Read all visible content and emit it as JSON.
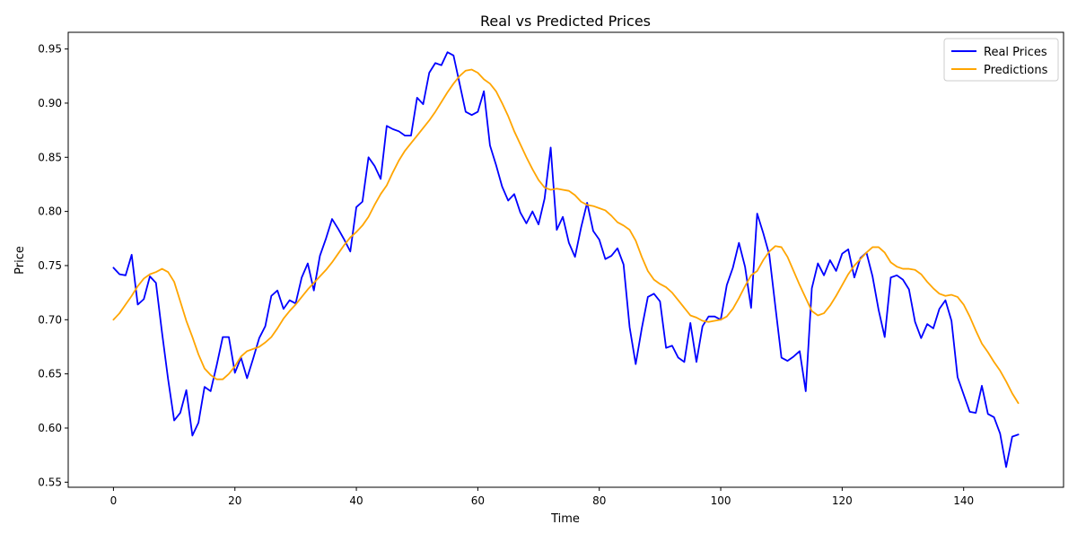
{
  "chart_data": {
    "type": "line",
    "title": "Real vs Predicted Prices",
    "xlabel": "Time",
    "ylabel": "Price",
    "xlim": [
      -7.45,
      156.45
    ],
    "ylim": [
      0.5453,
      0.9654
    ],
    "xticks": [
      0,
      20,
      40,
      60,
      80,
      100,
      120,
      140
    ],
    "yticks": [
      0.55,
      0.6,
      0.65,
      0.7,
      0.75,
      0.8,
      0.85,
      0.9,
      0.95
    ],
    "ytick_labels": [
      "0.55",
      "0.60",
      "0.65",
      "0.70",
      "0.75",
      "0.80",
      "0.85",
      "0.90",
      "0.95"
    ],
    "grid": false,
    "legend_position": "top-right",
    "series": [
      {
        "name": "Real Prices",
        "color": "#0000ff",
        "values": [
          0.748,
          0.742,
          0.741,
          0.76,
          0.714,
          0.719,
          0.74,
          0.734,
          0.688,
          0.645,
          0.607,
          0.614,
          0.635,
          0.593,
          0.605,
          0.638,
          0.634,
          0.658,
          0.684,
          0.684,
          0.651,
          0.665,
          0.646,
          0.664,
          0.683,
          0.694,
          0.722,
          0.727,
          0.71,
          0.718,
          0.715,
          0.739,
          0.752,
          0.727,
          0.759,
          0.775,
          0.793,
          0.784,
          0.774,
          0.763,
          0.804,
          0.809,
          0.85,
          0.842,
          0.83,
          0.879,
          0.876,
          0.874,
          0.87,
          0.87,
          0.905,
          0.899,
          0.928,
          0.937,
          0.935,
          0.947,
          0.944,
          0.918,
          0.892,
          0.889,
          0.892,
          0.911,
          0.861,
          0.843,
          0.823,
          0.81,
          0.816,
          0.799,
          0.789,
          0.8,
          0.788,
          0.812,
          0.859,
          0.783,
          0.795,
          0.771,
          0.758,
          0.785,
          0.808,
          0.782,
          0.774,
          0.756,
          0.759,
          0.766,
          0.751,
          0.693,
          0.659,
          0.692,
          0.721,
          0.724,
          0.717,
          0.674,
          0.676,
          0.665,
          0.661,
          0.697,
          0.661,
          0.694,
          0.703,
          0.703,
          0.7,
          0.732,
          0.748,
          0.771,
          0.749,
          0.711,
          0.798,
          0.78,
          0.76,
          0.712,
          0.665,
          0.662,
          0.666,
          0.671,
          0.634,
          0.729,
          0.752,
          0.741,
          0.755,
          0.745,
          0.761,
          0.765,
          0.739,
          0.757,
          0.762,
          0.74,
          0.709,
          0.684,
          0.739,
          0.741,
          0.737,
          0.728,
          0.698,
          0.683,
          0.696,
          0.692,
          0.71,
          0.718,
          0.699,
          0.647,
          0.631,
          0.615,
          0.614,
          0.639,
          0.613,
          0.61,
          0.595,
          0.564,
          0.592,
          0.594
        ]
      },
      {
        "name": "Predictions",
        "color": "#ffa500",
        "values": [
          0.7,
          0.706,
          0.714,
          0.722,
          0.731,
          0.738,
          0.742,
          0.744,
          0.747,
          0.744,
          0.735,
          0.717,
          0.699,
          0.684,
          0.668,
          0.655,
          0.649,
          0.645,
          0.645,
          0.65,
          0.657,
          0.666,
          0.671,
          0.673,
          0.675,
          0.679,
          0.684,
          0.692,
          0.701,
          0.708,
          0.714,
          0.721,
          0.728,
          0.734,
          0.74,
          0.746,
          0.753,
          0.761,
          0.769,
          0.776,
          0.781,
          0.787,
          0.795,
          0.806,
          0.816,
          0.824,
          0.836,
          0.847,
          0.856,
          0.863,
          0.87,
          0.877,
          0.884,
          0.892,
          0.901,
          0.91,
          0.918,
          0.925,
          0.93,
          0.931,
          0.928,
          0.922,
          0.918,
          0.911,
          0.9,
          0.888,
          0.874,
          0.862,
          0.85,
          0.839,
          0.829,
          0.822,
          0.82,
          0.821,
          0.82,
          0.819,
          0.815,
          0.809,
          0.806,
          0.805,
          0.803,
          0.801,
          0.796,
          0.79,
          0.787,
          0.783,
          0.773,
          0.758,
          0.745,
          0.737,
          0.733,
          0.73,
          0.725,
          0.718,
          0.711,
          0.704,
          0.702,
          0.699,
          0.698,
          0.699,
          0.7,
          0.703,
          0.71,
          0.72,
          0.731,
          0.741,
          0.745,
          0.755,
          0.763,
          0.768,
          0.767,
          0.758,
          0.745,
          0.732,
          0.72,
          0.708,
          0.704,
          0.706,
          0.713,
          0.722,
          0.732,
          0.742,
          0.75,
          0.756,
          0.762,
          0.767,
          0.767,
          0.762,
          0.753,
          0.749,
          0.747,
          0.747,
          0.746,
          0.742,
          0.735,
          0.729,
          0.724,
          0.722,
          0.723,
          0.721,
          0.714,
          0.703,
          0.69,
          0.678,
          0.67,
          0.661,
          0.653,
          0.643,
          0.632,
          0.623
        ]
      }
    ]
  }
}
